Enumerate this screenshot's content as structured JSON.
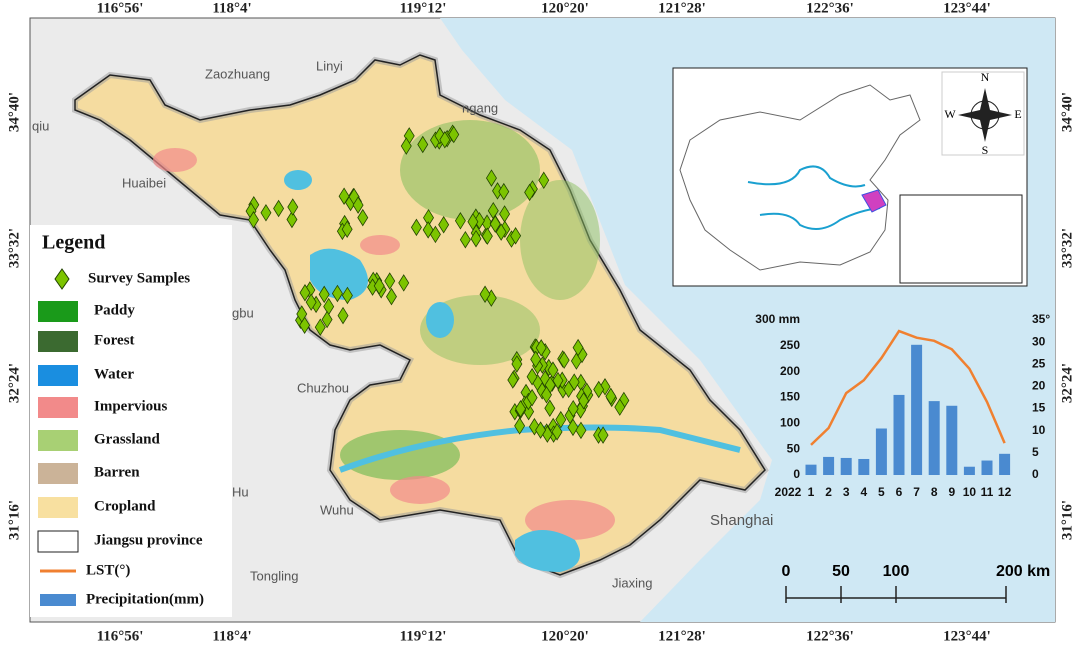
{
  "map": {
    "lon_labels": [
      "116°56'",
      "118°4'",
      "119°12'",
      "120°20'",
      "121°28'",
      "122°36'",
      "123°44'"
    ],
    "lat_labels": [
      "34°40'",
      "33°32'",
      "32°24'",
      "31°16'"
    ],
    "cities": [
      "Zaozhuang",
      "Linyi",
      "ngang",
      "qiu",
      "Huaibei",
      "gbu",
      "Chuzhou",
      "Hu",
      "Wuhu",
      "Tongling",
      "Jiaxing",
      "Shanghai"
    ],
    "legend": {
      "title": "Legend",
      "items": [
        "Survey Samples",
        "Paddy",
        "Forest",
        "Water",
        "Impervious",
        "Grassland",
        "Barren",
        "Cropland",
        "Jiangsu province",
        "LST(°)",
        "Precipitation(mm)"
      ],
      "colors": [
        "#7cc400",
        "#1a9a1a",
        "#3b6a30",
        "#1a8ee0",
        "#f28a8a",
        "#a8d074",
        "#cbb398",
        "#f8e0a0",
        "#ffffff",
        "#f08030",
        "#4a8ad0"
      ]
    },
    "compass": [
      "N",
      "E",
      "S",
      "W"
    ],
    "scale_bar": [
      0,
      50,
      100,
      {
        "value": 200,
        "label": "200 km"
      }
    ]
  },
  "chart_data": {
    "type": "bar",
    "x_label": "2022",
    "categories": [
      "1",
      "2",
      "3",
      "4",
      "5",
      "6",
      "7",
      "8",
      "9",
      "10",
      "11",
      "12"
    ],
    "series": [
      {
        "name": "Precipitation(mm)",
        "color": "#4a8ad0",
        "type": "bar",
        "values": [
          20,
          35,
          33,
          31,
          90,
          155,
          252,
          143,
          134,
          16,
          28,
          41
        ]
      },
      {
        "name": "LST(°)",
        "color": "#f08030",
        "type": "line",
        "axis": "y2",
        "values": [
          6.8,
          10.6,
          18.5,
          21.4,
          26.4,
          32.5,
          31,
          30.3,
          28.4,
          24,
          16.5,
          7.2
        ]
      }
    ],
    "ylim": [
      0,
      300
    ],
    "yticks": [
      0,
      50,
      100,
      150,
      200,
      250,
      {
        "value": 300,
        "label": "300 mm"
      }
    ],
    "y2lim": [
      0,
      35
    ],
    "y2ticks": [
      0,
      5,
      10,
      15,
      20,
      25,
      30,
      {
        "value": 35,
        "label": "35°"
      }
    ]
  }
}
